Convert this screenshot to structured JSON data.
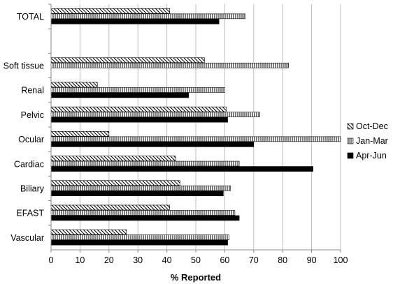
{
  "chart_data": {
    "type": "bar",
    "orientation": "horizontal",
    "categories": [
      "TOTAL",
      "",
      "Soft tissue",
      "Renal",
      "Pelvic",
      "Ocular",
      "Cardiac",
      "Biliary",
      "EFAST",
      "Vascular"
    ],
    "series": [
      {
        "name": "Oct-Dec",
        "pattern": "diagonal-hatch",
        "color": "#000000",
        "values": [
          41,
          null,
          53,
          16,
          60.5,
          20,
          43,
          44.5,
          41,
          26
        ]
      },
      {
        "name": "Jan-Mar",
        "pattern": "vertical-hatch",
        "color": "#000000",
        "values": [
          67,
          null,
          82,
          60,
          72,
          100,
          65,
          62,
          63.5,
          61.5
        ]
      },
      {
        "name": "Apr-Jun",
        "pattern": "solid",
        "color": "#000000",
        "values": [
          58,
          null,
          null,
          47.5,
          61,
          70,
          90.5,
          59.5,
          65,
          61
        ]
      }
    ],
    "xlabel": "% Reported",
    "ylabel": "",
    "xlim": [
      0,
      100
    ],
    "xticks": [
      "0",
      "10",
      "20",
      "30",
      "40",
      "50",
      "60",
      "70",
      "80",
      "90",
      "100"
    ],
    "grid": "vertical",
    "legend_position": "right"
  }
}
